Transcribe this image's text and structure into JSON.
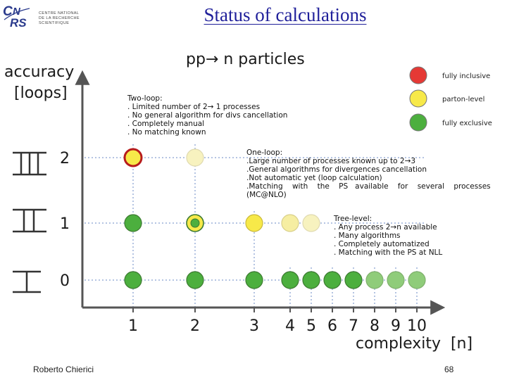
{
  "slide_title": "Status of calculations",
  "logo": {
    "mark": "CNRS",
    "text": [
      "CENTRE NATIONAL",
      "DE LA RECHERCHE",
      "SCIENTIFIQUE"
    ]
  },
  "process_title": "pp→ n particles",
  "axis": {
    "y_title_line1": "accuracy",
    "y_title_line2": "[loops]",
    "x_title": "complexity  [n]",
    "y_ticks": [
      "0",
      "1",
      "2"
    ],
    "x_ticks": [
      "1",
      "2",
      "3",
      "4",
      "5",
      "6",
      "7",
      "8",
      "9",
      "10"
    ]
  },
  "legend": [
    {
      "label": "fully inclusive",
      "color": "#e53935"
    },
    {
      "label": "parton-level",
      "color": "#f7e949"
    },
    {
      "label": "fully exclusive",
      "color": "#4caf3e"
    }
  ],
  "colors": {
    "axis": "#555555",
    "grid": "#9bb0d9",
    "red": "#e53935",
    "yellow": "#f7e949",
    "green": "#4caf3e",
    "pale_yellow": "#f7f2bf",
    "pale_green": "#8fcc7a"
  },
  "points": [
    {
      "n": 1,
      "loops": 0,
      "style": "green"
    },
    {
      "n": 2,
      "loops": 0,
      "style": "green"
    },
    {
      "n": 3,
      "loops": 0,
      "style": "green"
    },
    {
      "n": 4,
      "loops": 0,
      "style": "green"
    },
    {
      "n": 5,
      "loops": 0,
      "style": "green"
    },
    {
      "n": 6,
      "loops": 0,
      "style": "green"
    },
    {
      "n": 7,
      "loops": 0,
      "style": "green"
    },
    {
      "n": 8,
      "loops": 0,
      "style": "pale_green"
    },
    {
      "n": 9,
      "loops": 0,
      "style": "pale_green"
    },
    {
      "n": 10,
      "loops": 0,
      "style": "pale_green"
    },
    {
      "n": 1,
      "loops": 1,
      "style": "green"
    },
    {
      "n": 2,
      "loops": 1,
      "style": "yellow_green"
    },
    {
      "n": 3,
      "loops": 1,
      "style": "yellow"
    },
    {
      "n": 4,
      "loops": 1,
      "style": "light_yellow"
    },
    {
      "n": 5,
      "loops": 1,
      "style": "pale_yellow"
    },
    {
      "n": 1,
      "loops": 2,
      "style": "red_yellow"
    },
    {
      "n": 2,
      "loops": 2,
      "style": "pale_yellow"
    }
  ],
  "notes": {
    "two_loop": {
      "title": "Two-loop:",
      "lines": [
        ". Limited number of 2→ 1 processes",
        ". No general algorithm for divs cancellation",
        ". Completely manual",
        ". No matching known"
      ]
    },
    "one_loop": {
      "title": "One-loop:",
      "lines": [
        ".Large number of processes known up to 2→3",
        ".General algorithms for divergences cancellation",
        ".Not automatic yet (loop calculation)",
        ".Matching    with    the    PS   available    for    several    processes",
        "(MC@NLO)"
      ]
    },
    "tree_level": {
      "title": "Tree-level:",
      "lines": [
        ". Any process 2→n available",
        ". Many algorithms",
        ". Completely automatized",
        ". Matching with the PS at NLL"
      ]
    }
  },
  "footer": {
    "author": "Roberto Chierici",
    "page": "68"
  }
}
